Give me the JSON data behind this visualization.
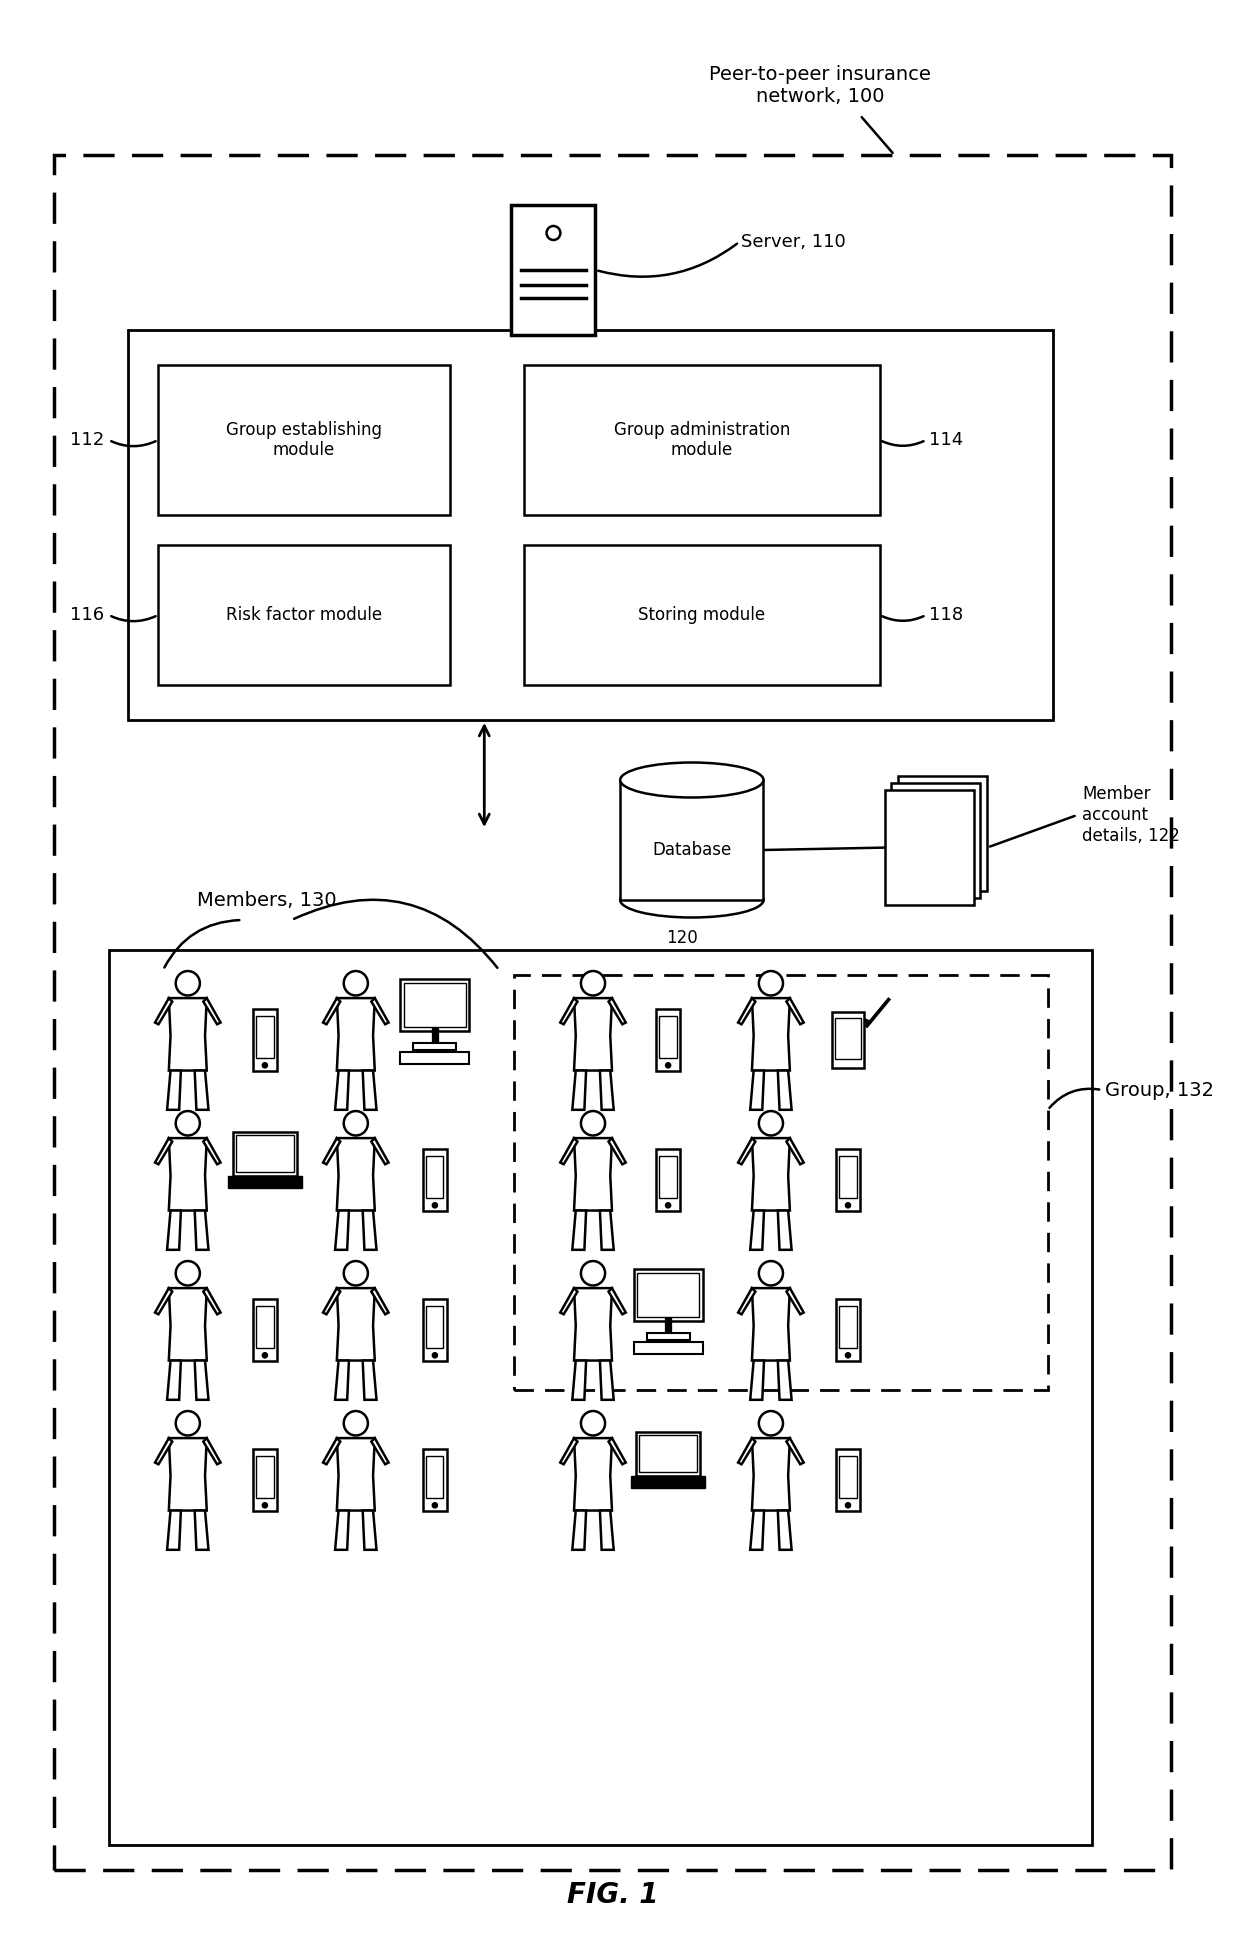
{
  "title": "FIG. 1",
  "bg_color": "#ffffff",
  "fig_width": 12.4,
  "fig_height": 19.42,
  "dpi": 100,
  "network_label": "Peer-to-peer insurance\nnetwork, 100",
  "server_label": "Server, 110",
  "module_112": "Group establishing\nmodule",
  "module_114": "Group administration\nmodule",
  "module_116": "Risk factor module",
  "module_118": "Storing module",
  "db_label": "Database",
  "db_id": "120",
  "mac_label": "Member\naccount\ndetails, 122",
  "members_label": "Members, 130",
  "group_label": "Group, 132",
  "label_112": "112",
  "label_114": "114",
  "label_116": "116",
  "label_118": "118"
}
